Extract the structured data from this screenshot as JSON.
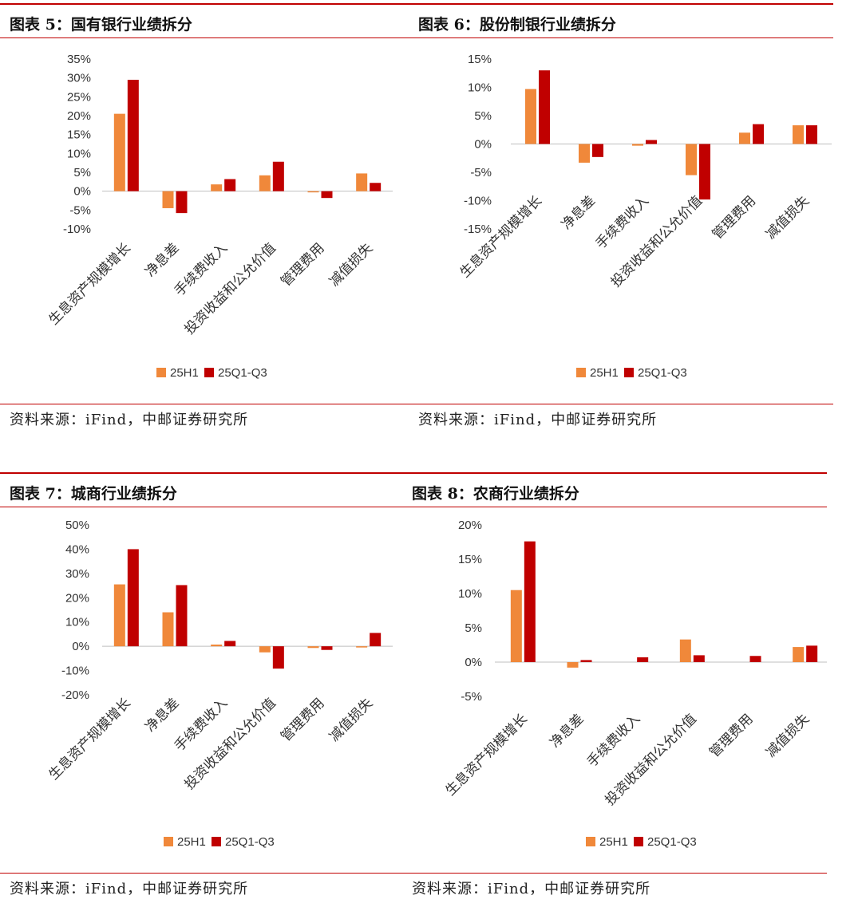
{
  "colors": {
    "s1": "#f0883a",
    "s2": "#c00000",
    "rule": "#c00000",
    "axis": "#bfbfbf"
  },
  "panels": [
    {
      "title": "图表 5：国有银行业绩拆分",
      "source": "资料来源：iFind，中邮证券研究所",
      "chart_data": {
        "type": "bar",
        "title": "",
        "categories": [
          "生息资产规模增长",
          "净息差",
          "手续费收入",
          "投资收益和公允价值",
          "管理费用",
          "减值损失"
        ],
        "series": [
          {
            "name": "25H1",
            "values": [
              20.5,
              -4.5,
              1.8,
              4.2,
              -0.3,
              4.7
            ]
          },
          {
            "name": "25Q1-Q3",
            "values": [
              29.5,
              -5.8,
              3.2,
              7.8,
              -1.8,
              2.2
            ]
          }
        ],
        "ylim": [
          -10,
          35
        ],
        "yticks": [
          -10,
          -5,
          0,
          5,
          10,
          15,
          20,
          25,
          30,
          35
        ],
        "ytick_labels": [
          "-10%",
          "-5%",
          "0%",
          "5%",
          "10%",
          "15%",
          "20%",
          "25%",
          "30%",
          "35%"
        ],
        "legend": [
          "25H1",
          "25Q1-Q3"
        ]
      }
    },
    {
      "title": "图表 6：股份制银行业绩拆分",
      "source": "资料来源：iFind，中邮证券研究所",
      "chart_data": {
        "type": "bar",
        "title": "",
        "categories": [
          "生息资产规模增长",
          "净息差",
          "手续费收入",
          "投资收益和公允价值",
          "管理费用",
          "减值损失"
        ],
        "series": [
          {
            "name": "25H1",
            "values": [
              9.7,
              -3.3,
              -0.3,
              -5.5,
              2.0,
              3.3
            ]
          },
          {
            "name": "25Q1-Q3",
            "values": [
              13.0,
              -2.3,
              0.7,
              -9.8,
              3.5,
              3.3
            ]
          }
        ],
        "ylim": [
          -15,
          15
        ],
        "yticks": [
          -15,
          -10,
          -5,
          0,
          5,
          10,
          15
        ],
        "ytick_labels": [
          "-15%",
          "-10%",
          "-5%",
          "0%",
          "5%",
          "10%",
          "15%"
        ],
        "legend": [
          "25H1",
          "25Q1-Q3"
        ]
      }
    },
    {
      "title": "图表 7：城商行业绩拆分",
      "source": "资料来源：iFind，中邮证券研究所",
      "chart_data": {
        "type": "bar",
        "title": "",
        "categories": [
          "生息资产规模增长",
          "净息差",
          "手续费收入",
          "投资收益和公允价值",
          "管理费用",
          "减值损失"
        ],
        "series": [
          {
            "name": "25H1",
            "values": [
              25.5,
              14.0,
              0.7,
              -2.5,
              -0.7,
              -0.5
            ]
          },
          {
            "name": "25Q1-Q3",
            "values": [
              40.0,
              25.2,
              2.2,
              -9.2,
              -1.5,
              5.5
            ]
          }
        ],
        "ylim": [
          -20,
          50
        ],
        "yticks": [
          -20,
          -10,
          0,
          10,
          20,
          30,
          40,
          50
        ],
        "ytick_labels": [
          "-20%",
          "-10%",
          "0%",
          "10%",
          "20%",
          "30%",
          "40%",
          "50%"
        ],
        "legend": [
          "25H1",
          "25Q1-Q3"
        ]
      }
    },
    {
      "title": "图表 8：农商行业绩拆分",
      "source": "资料来源：iFind，中邮证券研究所",
      "chart_data": {
        "type": "bar",
        "title": "",
        "categories": [
          "生息资产规模增长",
          "净息差",
          "手续费收入",
          "投资收益和公允价值",
          "管理费用",
          "减值损失"
        ],
        "series": [
          {
            "name": "25H1",
            "values": [
              10.5,
              -0.8,
              0.0,
              3.3,
              0.0,
              2.2
            ]
          },
          {
            "name": "25Q1-Q3",
            "values": [
              17.6,
              0.3,
              0.7,
              1.0,
              0.9,
              2.4
            ]
          }
        ],
        "ylim": [
          -5,
          20
        ],
        "yticks": [
          -5,
          0,
          5,
          10,
          15,
          20
        ],
        "ytick_labels": [
          "-5%",
          "0%",
          "5%",
          "10%",
          "15%",
          "20%"
        ],
        "legend": [
          "25H1",
          "25Q1-Q3"
        ]
      }
    }
  ]
}
